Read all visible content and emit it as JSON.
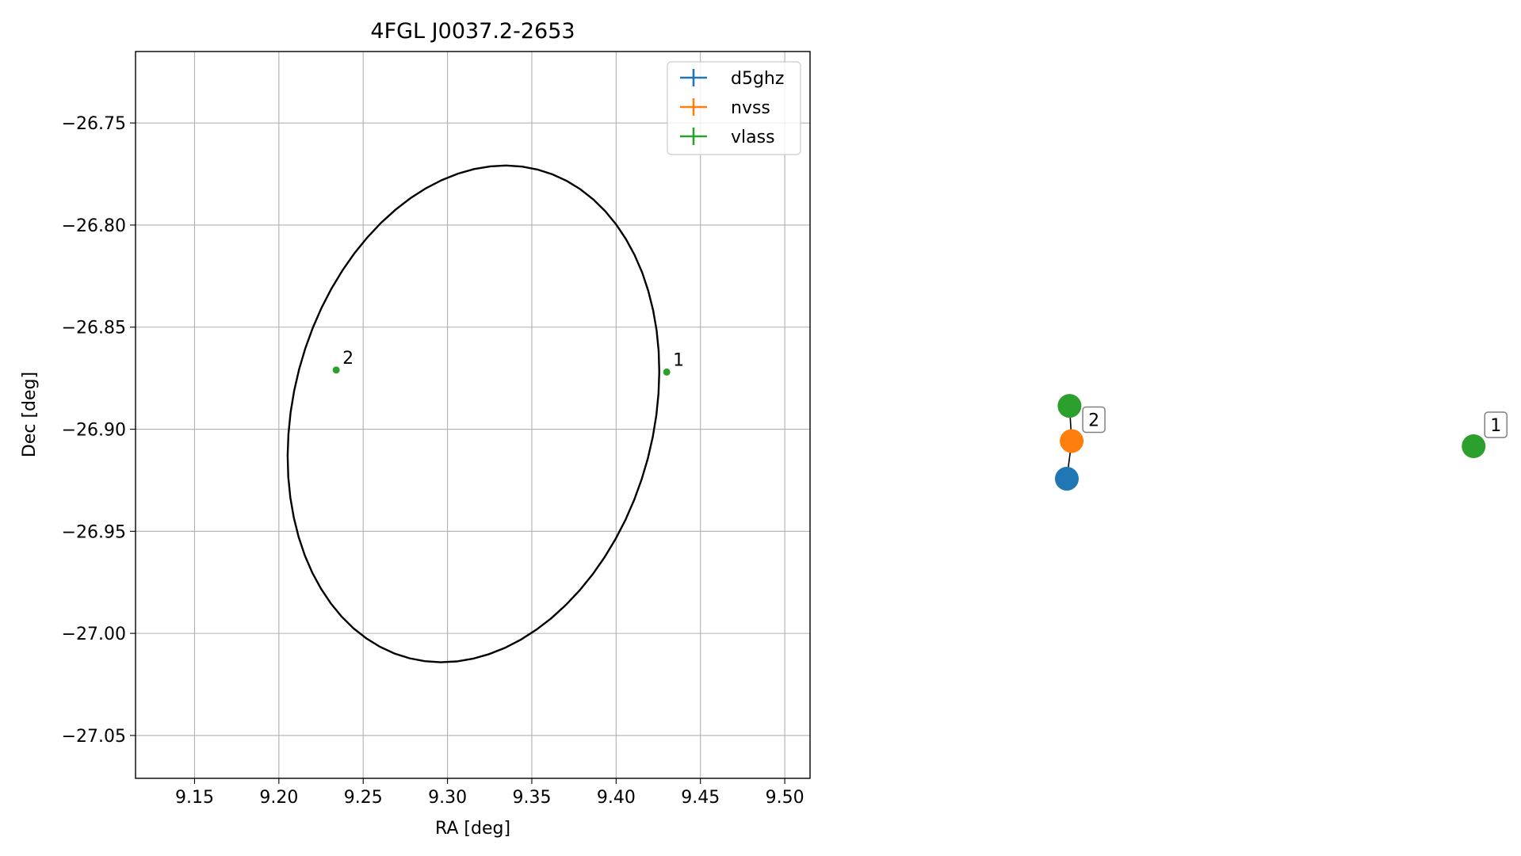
{
  "chart_data": [
    {
      "type": "scatter",
      "title": "4FGL J0037.2-2653",
      "xlabel": "RA [deg]",
      "ylabel": "Dec [deg]",
      "xlim": [
        9.115,
        9.515
      ],
      "ylim": [
        -27.071,
        -26.715
      ],
      "grid": true,
      "legend_position": "upper right",
      "x_ticks": [
        {
          "value": 9.15,
          "label": "9.15"
        },
        {
          "value": 9.2,
          "label": "9.20"
        },
        {
          "value": 9.25,
          "label": "9.25"
        },
        {
          "value": 9.3,
          "label": "9.30"
        },
        {
          "value": 9.35,
          "label": "9.35"
        },
        {
          "value": 9.4,
          "label": "9.40"
        },
        {
          "value": 9.45,
          "label": "9.45"
        },
        {
          "value": 9.5,
          "label": "9.50"
        }
      ],
      "y_ticks": [
        {
          "value": -26.75,
          "label": "−26.75"
        },
        {
          "value": -26.8,
          "label": "−26.80"
        },
        {
          "value": -26.85,
          "label": "−26.85"
        },
        {
          "value": -26.9,
          "label": "−26.90"
        },
        {
          "value": -26.95,
          "label": "−26.95"
        },
        {
          "value": -27.0,
          "label": "−27.00"
        },
        {
          "value": -27.05,
          "label": "−27.05"
        }
      ],
      "series": [
        {
          "name": "d5ghz",
          "color": "#1f77b4",
          "points": []
        },
        {
          "name": "nvss",
          "color": "#ff7f0e",
          "points": []
        },
        {
          "name": "vlass",
          "color": "#2ca02c",
          "points": [
            {
              "x": 9.43,
              "y": -26.872,
              "label": "1"
            },
            {
              "x": 9.234,
              "y": -26.871,
              "label": "2"
            }
          ]
        }
      ],
      "ellipse": {
        "center": [
          9.3154,
          -26.8925
        ],
        "semi_major": 0.127,
        "semi_minor": 0.104,
        "angle_deg": 60,
        "color": "#000000"
      }
    },
    {
      "type": "network",
      "nodes": [
        {
          "id": "vlass-2",
          "series": "vlass",
          "color": "#2ca02c",
          "x": 0.0065,
          "y": 0.56
        },
        {
          "id": "nvss-2",
          "series": "nvss",
          "color": "#ff7f0e",
          "x": 0.0117,
          "y": 0.29,
          "label": "2"
        },
        {
          "id": "d5ghz-2",
          "series": "d5ghz",
          "color": "#1f77b4",
          "x": 0.0,
          "y": 0.0
        },
        {
          "id": "vlass-1",
          "series": "vlass",
          "color": "#2ca02c",
          "x": 0.987,
          "y": 0.25,
          "label": "1"
        }
      ],
      "edges": [
        {
          "from": "vlass-2",
          "to": "nvss-2"
        },
        {
          "from": "nvss-2",
          "to": "d5ghz-2"
        }
      ]
    }
  ]
}
